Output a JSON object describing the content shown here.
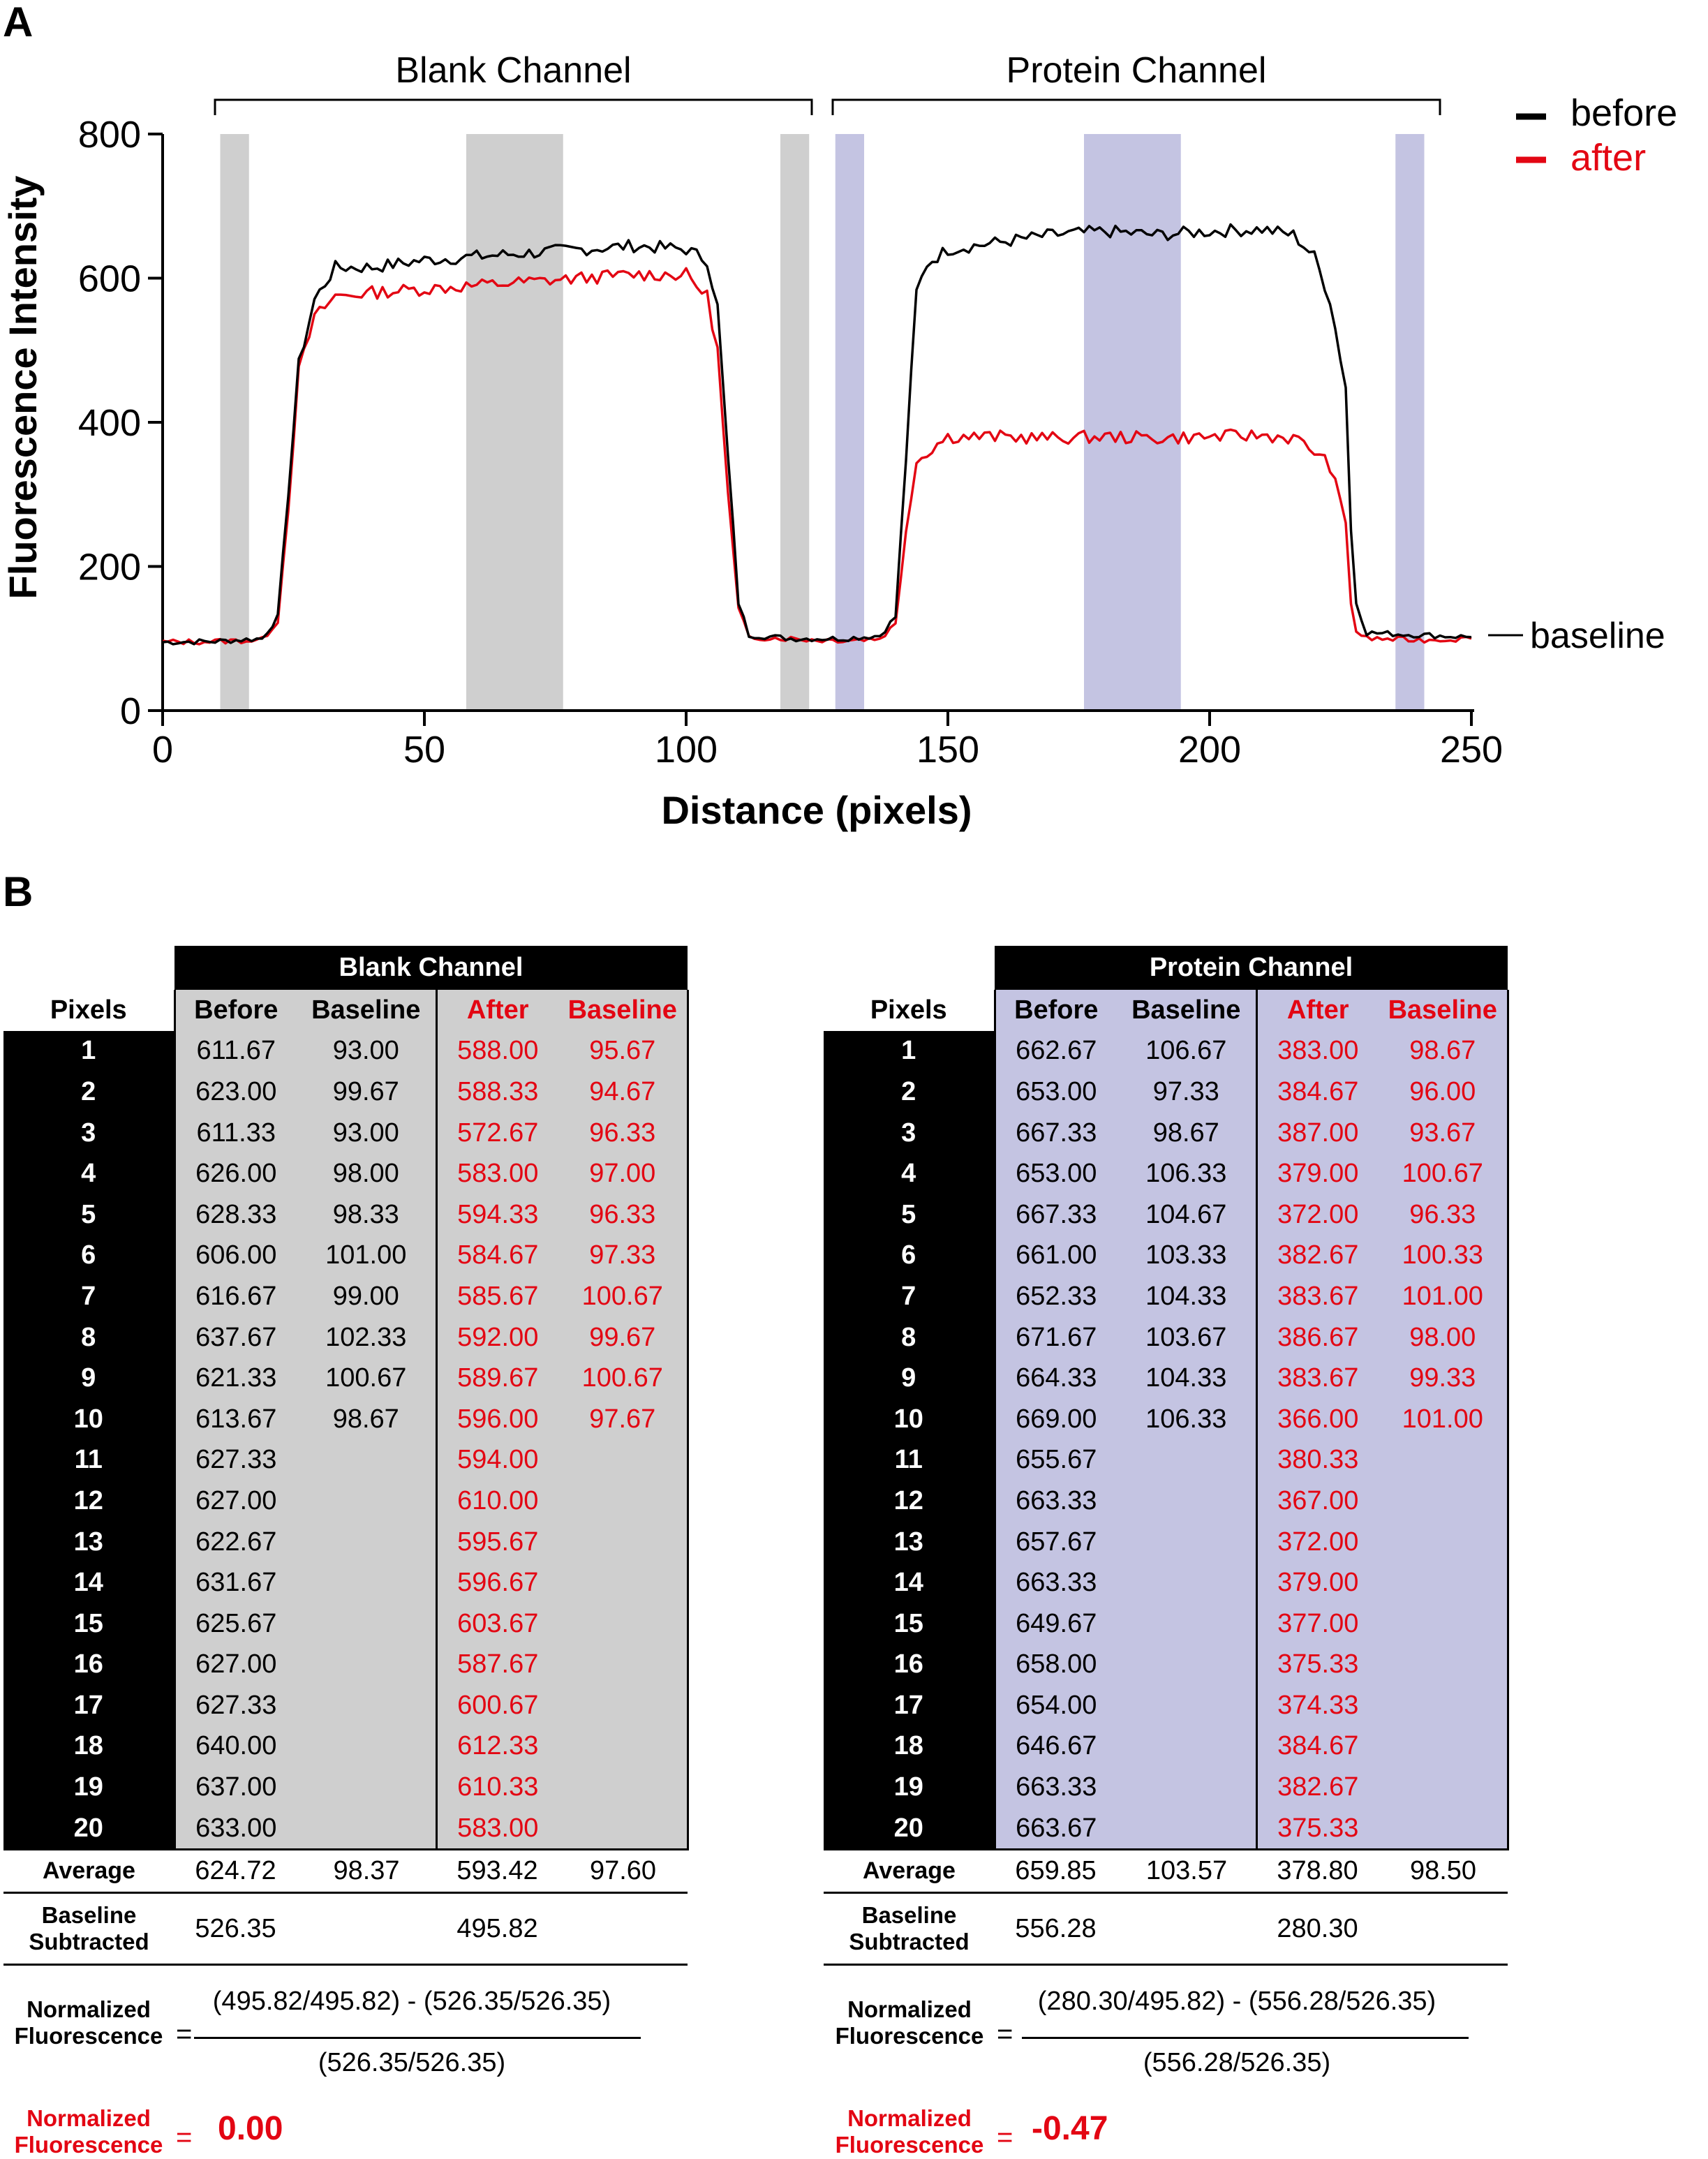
{
  "panel_a": {
    "label": "A",
    "chart_data": {
      "type": "line",
      "xlabel": "Distance (pixels)",
      "ylabel": "Fluorescence Intensity",
      "xlim": [
        0,
        250
      ],
      "ylim": [
        0,
        800
      ],
      "xticks": [
        0,
        50,
        100,
        150,
        200,
        250
      ],
      "yticks": [
        0,
        200,
        400,
        600,
        800
      ],
      "channel_labels": [
        "Blank Channel",
        "Protein Channel"
      ],
      "channel_ranges": [
        [
          10,
          124
        ],
        [
          128,
          244
        ]
      ],
      "shaded_regions": [
        {
          "x0": 11,
          "x1": 16.5,
          "color": "#cfcfcf"
        },
        {
          "x0": 58,
          "x1": 76.5,
          "color": "#cfcfcf"
        },
        {
          "x0": 118,
          "x1": 123.5,
          "color": "#cfcfcf"
        },
        {
          "x0": 128.5,
          "x1": 134,
          "color": "#c4c4e2"
        },
        {
          "x0": 176,
          "x1": 194.5,
          "color": "#c4c4e2"
        },
        {
          "x0": 235.5,
          "x1": 241,
          "color": "#c4c4e2"
        }
      ],
      "series": [
        {
          "name": "before",
          "color": "#000000",
          "points": [
            [
              0,
              95
            ],
            [
              10,
              96
            ],
            [
              19,
              100
            ],
            [
              22,
              130
            ],
            [
              24,
              300
            ],
            [
              26,
              480
            ],
            [
              29,
              570
            ],
            [
              33,
              615
            ],
            [
              40,
              615
            ],
            [
              50,
              625
            ],
            [
              60,
              630
            ],
            [
              70,
              635
            ],
            [
              80,
              640
            ],
            [
              90,
              645
            ],
            [
              100,
              640
            ],
            [
              104,
              625
            ],
            [
              106,
              560
            ],
            [
              108,
              350
            ],
            [
              110,
              150
            ],
            [
              112,
              105
            ],
            [
              120,
              100
            ],
            [
              125,
              100
            ],
            [
              130,
              100
            ],
            [
              137,
              104
            ],
            [
              140,
              130
            ],
            [
              142,
              350
            ],
            [
              144,
              580
            ],
            [
              146,
              620
            ],
            [
              150,
              640
            ],
            [
              160,
              650
            ],
            [
              170,
              660
            ],
            [
              180,
              665
            ],
            [
              190,
              660
            ],
            [
              200,
              665
            ],
            [
              210,
              668
            ],
            [
              216,
              660
            ],
            [
              220,
              630
            ],
            [
              223,
              570
            ],
            [
              226,
              450
            ],
            [
              227,
              250
            ],
            [
              228,
              150
            ],
            [
              230,
              108
            ],
            [
              240,
              105
            ],
            [
              250,
              102
            ]
          ]
        },
        {
          "name": "after",
          "color": "#e30613",
          "points": [
            [
              0,
              95
            ],
            [
              10,
              96
            ],
            [
              19,
              98
            ],
            [
              22,
              125
            ],
            [
              24,
              280
            ],
            [
              26,
              470
            ],
            [
              29,
              545
            ],
            [
              33,
              575
            ],
            [
              40,
              580
            ],
            [
              50,
              585
            ],
            [
              60,
              590
            ],
            [
              70,
              595
            ],
            [
              80,
              600
            ],
            [
              90,
              605
            ],
            [
              100,
              605
            ],
            [
              104,
              575
            ],
            [
              106,
              500
            ],
            [
              108,
              300
            ],
            [
              110,
              140
            ],
            [
              112,
              102
            ],
            [
              120,
              100
            ],
            [
              125,
              98
            ],
            [
              130,
              98
            ],
            [
              137,
              100
            ],
            [
              140,
              120
            ],
            [
              142,
              250
            ],
            [
              144,
              345
            ],
            [
              147,
              365
            ],
            [
              150,
              380
            ],
            [
              160,
              380
            ],
            [
              170,
              378
            ],
            [
              180,
              380
            ],
            [
              190,
              378
            ],
            [
              200,
              380
            ],
            [
              210,
              382
            ],
            [
              216,
              378
            ],
            [
              220,
              360
            ],
            [
              223,
              340
            ],
            [
              226,
              260
            ],
            [
              227,
              150
            ],
            [
              228,
              110
            ],
            [
              230,
              100
            ],
            [
              240,
              98
            ],
            [
              250,
              100
            ]
          ]
        }
      ],
      "legend": [
        "before",
        "after"
      ],
      "legend_position": "top-right",
      "annotation": "baseline"
    }
  },
  "panel_b": {
    "label": "B",
    "pixels_header": "Pixels",
    "before_header": "Before",
    "baseline_header": "Baseline",
    "after_header": "After",
    "average_label": "Average",
    "baseline_subtracted_label": "Baseline Subtracted",
    "normalized_label": "Normalized Fluorescence",
    "blank": {
      "title": "Blank Channel",
      "rows": [
        [
          "1",
          "611.67",
          "93.00",
          "588.00",
          "95.67"
        ],
        [
          "2",
          "623.00",
          "99.67",
          "588.33",
          "94.67"
        ],
        [
          "3",
          "611.33",
          "93.00",
          "572.67",
          "96.33"
        ],
        [
          "4",
          "626.00",
          "98.00",
          "583.00",
          "97.00"
        ],
        [
          "5",
          "628.33",
          "98.33",
          "594.33",
          "96.33"
        ],
        [
          "6",
          "606.00",
          "101.00",
          "584.67",
          "97.33"
        ],
        [
          "7",
          "616.67",
          "99.00",
          "585.67",
          "100.67"
        ],
        [
          "8",
          "637.67",
          "102.33",
          "592.00",
          "99.67"
        ],
        [
          "9",
          "621.33",
          "100.67",
          "589.67",
          "100.67"
        ],
        [
          "10",
          "613.67",
          "98.67",
          "596.00",
          "97.67"
        ],
        [
          "11",
          "627.33",
          "",
          "594.00",
          ""
        ],
        [
          "12",
          "627.00",
          "",
          "610.00",
          ""
        ],
        [
          "13",
          "622.67",
          "",
          "595.67",
          ""
        ],
        [
          "14",
          "631.67",
          "",
          "596.67",
          ""
        ],
        [
          "15",
          "625.67",
          "",
          "603.67",
          ""
        ],
        [
          "16",
          "627.00",
          "",
          "587.67",
          ""
        ],
        [
          "17",
          "627.33",
          "",
          "600.67",
          ""
        ],
        [
          "18",
          "640.00",
          "",
          "612.33",
          ""
        ],
        [
          "19",
          "637.00",
          "",
          "610.33",
          ""
        ],
        [
          "20",
          "633.00",
          "",
          "583.00",
          ""
        ]
      ],
      "average": [
        "624.72",
        "98.37",
        "593.42",
        "97.60"
      ],
      "baseline_subtracted": [
        "526.35",
        "495.82"
      ],
      "formula_numerator": "(495.82/495.82) - (526.35/526.35)",
      "formula_denominator": "(526.35/526.35)",
      "result": "0.00"
    },
    "protein": {
      "title": "Protein Channel",
      "rows": [
        [
          "1",
          "662.67",
          "106.67",
          "383.00",
          "98.67"
        ],
        [
          "2",
          "653.00",
          "97.33",
          "384.67",
          "96.00"
        ],
        [
          "3",
          "667.33",
          "98.67",
          "387.00",
          "93.67"
        ],
        [
          "4",
          "653.00",
          "106.33",
          "379.00",
          "100.67"
        ],
        [
          "5",
          "667.33",
          "104.67",
          "372.00",
          "96.33"
        ],
        [
          "6",
          "661.00",
          "103.33",
          "382.67",
          "100.33"
        ],
        [
          "7",
          "652.33",
          "104.33",
          "383.67",
          "101.00"
        ],
        [
          "8",
          "671.67",
          "103.67",
          "386.67",
          "98.00"
        ],
        [
          "9",
          "664.33",
          "104.33",
          "383.67",
          "99.33"
        ],
        [
          "10",
          "669.00",
          "106.33",
          "366.00",
          "101.00"
        ],
        [
          "11",
          "655.67",
          "",
          "380.33",
          ""
        ],
        [
          "12",
          "663.33",
          "",
          "367.00",
          ""
        ],
        [
          "13",
          "657.67",
          "",
          "372.00",
          ""
        ],
        [
          "14",
          "663.33",
          "",
          "379.00",
          ""
        ],
        [
          "15",
          "649.67",
          "",
          "377.00",
          ""
        ],
        [
          "16",
          "658.00",
          "",
          "375.33",
          ""
        ],
        [
          "17",
          "654.00",
          "",
          "374.33",
          ""
        ],
        [
          "18",
          "646.67",
          "",
          "384.67",
          ""
        ],
        [
          "19",
          "663.33",
          "",
          "382.67",
          ""
        ],
        [
          "20",
          "663.67",
          "",
          "375.33",
          ""
        ]
      ],
      "average": [
        "659.85",
        "103.57",
        "378.80",
        "98.50"
      ],
      "baseline_subtracted": [
        "556.28",
        "280.30"
      ],
      "formula_numerator": "(280.30/495.82) - (556.28/526.35)",
      "formula_denominator": "(556.28/526.35)",
      "result": "-0.47"
    }
  }
}
